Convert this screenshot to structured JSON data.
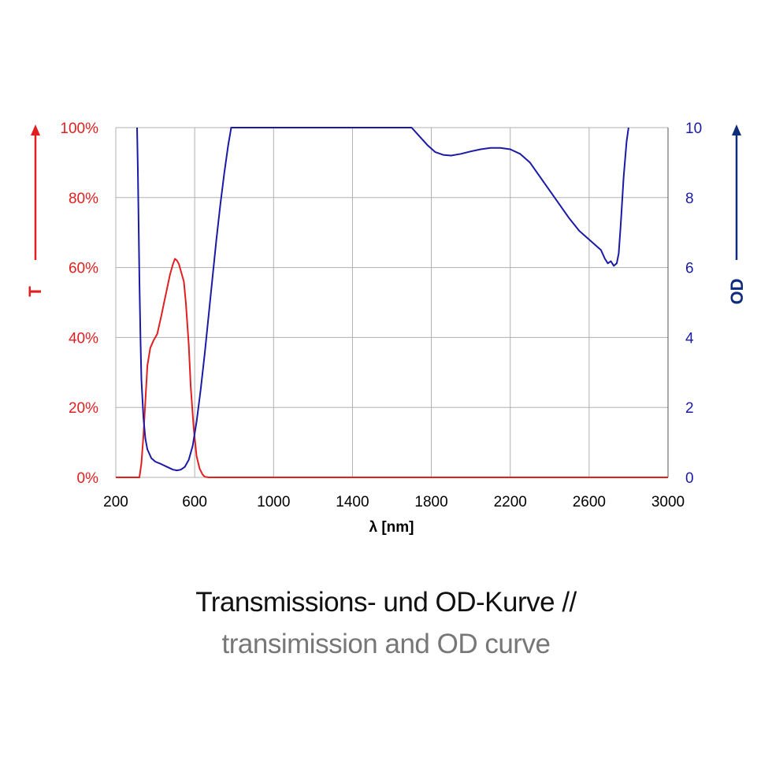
{
  "chart_data": {
    "type": "line",
    "xlabel": "λ [nm]",
    "ylabel_left": "T",
    "ylabel_right": "OD",
    "xlim": [
      200,
      3000
    ],
    "xticks": [
      200,
      600,
      1000,
      1400,
      1800,
      2200,
      2600,
      3000
    ],
    "ylim_left": [
      0,
      100
    ],
    "yticks_left": [
      "0%",
      "20%",
      "40%",
      "60%",
      "80%",
      "100%"
    ],
    "ylim_right": [
      0,
      10
    ],
    "yticks_right": [
      "0",
      "2",
      "4",
      "6",
      "8",
      "10"
    ],
    "grid": true,
    "colors": {
      "transmission": "#e02020",
      "od": "#1a1aa6",
      "od_arrow": "#0d2c7a",
      "grid": "#b0b0b0"
    },
    "series": [
      {
        "axis": "left",
        "x": [
          200,
          300,
          320,
          330,
          340,
          350,
          360,
          375,
          390,
          410,
          430,
          445,
          460,
          475,
          490,
          500,
          510,
          520,
          530,
          545,
          555,
          570,
          580,
          595,
          610,
          625,
          640,
          650,
          670,
          800,
          3000
        ],
        "y": [
          0,
          0,
          0,
          4,
          12,
          22,
          32,
          37,
          39,
          41,
          46,
          50,
          54,
          58,
          61,
          62.5,
          62,
          61,
          59,
          56,
          50,
          38,
          26,
          14,
          6,
          2.5,
          0.8,
          0.2,
          0,
          0,
          0
        ]
      },
      {
        "axis": "right",
        "x": [
          308,
          312,
          316,
          320,
          325,
          330,
          340,
          350,
          360,
          380,
          400,
          430,
          460,
          490,
          510,
          530,
          550,
          570,
          590,
          610,
          630,
          650,
          670,
          690,
          710,
          730,
          750,
          770,
          785,
          1700,
          1740,
          1780,
          1820,
          1860,
          1900,
          1950,
          2000,
          2050,
          2100,
          2150,
          2200,
          2250,
          2300,
          2350,
          2400,
          2450,
          2500,
          2550,
          2600,
          2640,
          2660,
          2680,
          2695,
          2710,
          2725,
          2740,
          2750,
          2760,
          2775,
          2790,
          2800
        ],
        "y": [
          10,
          8.8,
          7.2,
          5.6,
          4,
          2.8,
          1.7,
          1.1,
          0.8,
          0.55,
          0.45,
          0.38,
          0.3,
          0.22,
          0.2,
          0.22,
          0.3,
          0.5,
          0.9,
          1.6,
          2.5,
          3.5,
          4.6,
          5.7,
          6.8,
          7.8,
          8.7,
          9.5,
          10,
          10,
          9.75,
          9.5,
          9.3,
          9.22,
          9.2,
          9.25,
          9.32,
          9.38,
          9.42,
          9.42,
          9.38,
          9.25,
          9.0,
          8.6,
          8.2,
          7.8,
          7.4,
          7.05,
          6.8,
          6.6,
          6.5,
          6.25,
          6.12,
          6.18,
          6.05,
          6.12,
          6.4,
          7.2,
          8.6,
          9.6,
          10
        ]
      }
    ]
  },
  "caption": {
    "line1": "Transmissions- und OD-Kurve //",
    "line2": "transimission and OD curve"
  }
}
